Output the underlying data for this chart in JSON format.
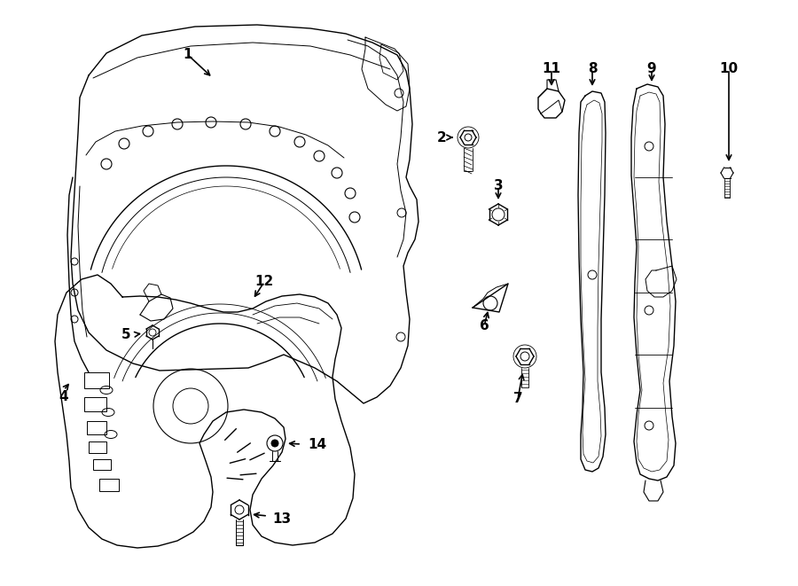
{
  "bg_color": "#ffffff",
  "line_color": "#000000",
  "lw": 1.0,
  "fig_width": 9.0,
  "fig_height": 6.61,
  "dpi": 100,
  "font_size": 11
}
